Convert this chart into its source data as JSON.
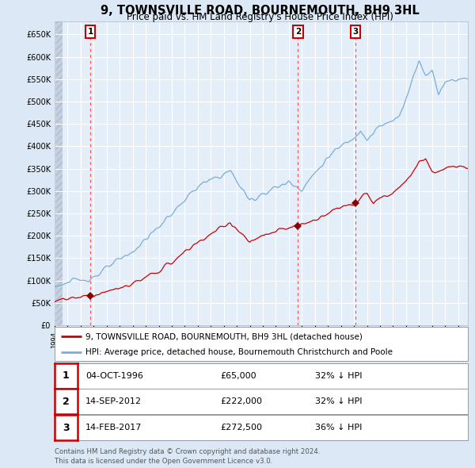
{
  "title": "9, TOWNSVILLE ROAD, BOURNEMOUTH, BH9 3HL",
  "subtitle": "Price paid vs. HM Land Registry's House Price Index (HPI)",
  "title_fontsize": 10.5,
  "subtitle_fontsize": 8.5,
  "bg_color": "#dce8f5",
  "plot_bg_color": "#e4eef9",
  "grid_color": "#ffffff",
  "hatch_color": "#c4d0e0",
  "red_line_color": "#cc0000",
  "blue_line_color": "#7aadd4",
  "marker_color": "#880000",
  "dashed_line_color": "#ff5555",
  "yticks": [
    0,
    50000,
    100000,
    150000,
    200000,
    250000,
    300000,
    350000,
    400000,
    450000,
    500000,
    550000,
    600000,
    650000
  ],
  "ytick_labels": [
    "£0",
    "£50K",
    "£100K",
    "£150K",
    "£200K",
    "£250K",
    "£300K",
    "£350K",
    "£400K",
    "£450K",
    "£500K",
    "£550K",
    "£600K",
    "£650K"
  ],
  "xmin": 1994.0,
  "xmax": 2025.75,
  "ymin": 0,
  "ymax": 680000,
  "sale_dates": [
    1996.75,
    2012.7,
    2017.1
  ],
  "sale_prices": [
    65000,
    222000,
    272500
  ],
  "sale_labels": [
    "1",
    "2",
    "3"
  ],
  "legend_line1": "9, TOWNSVILLE ROAD, BOURNEMOUTH, BH9 3HL (detached house)",
  "legend_line2": "HPI: Average price, detached house, Bournemouth Christchurch and Poole",
  "table_data": [
    [
      "1",
      "04-OCT-1996",
      "£65,000",
      "32% ↓ HPI"
    ],
    [
      "2",
      "14-SEP-2012",
      "£222,000",
      "32% ↓ HPI"
    ],
    [
      "3",
      "14-FEB-2017",
      "£272,500",
      "36% ↓ HPI"
    ]
  ],
  "footer": "Contains HM Land Registry data © Crown copyright and database right 2024.\nThis data is licensed under the Open Government Licence v3.0."
}
